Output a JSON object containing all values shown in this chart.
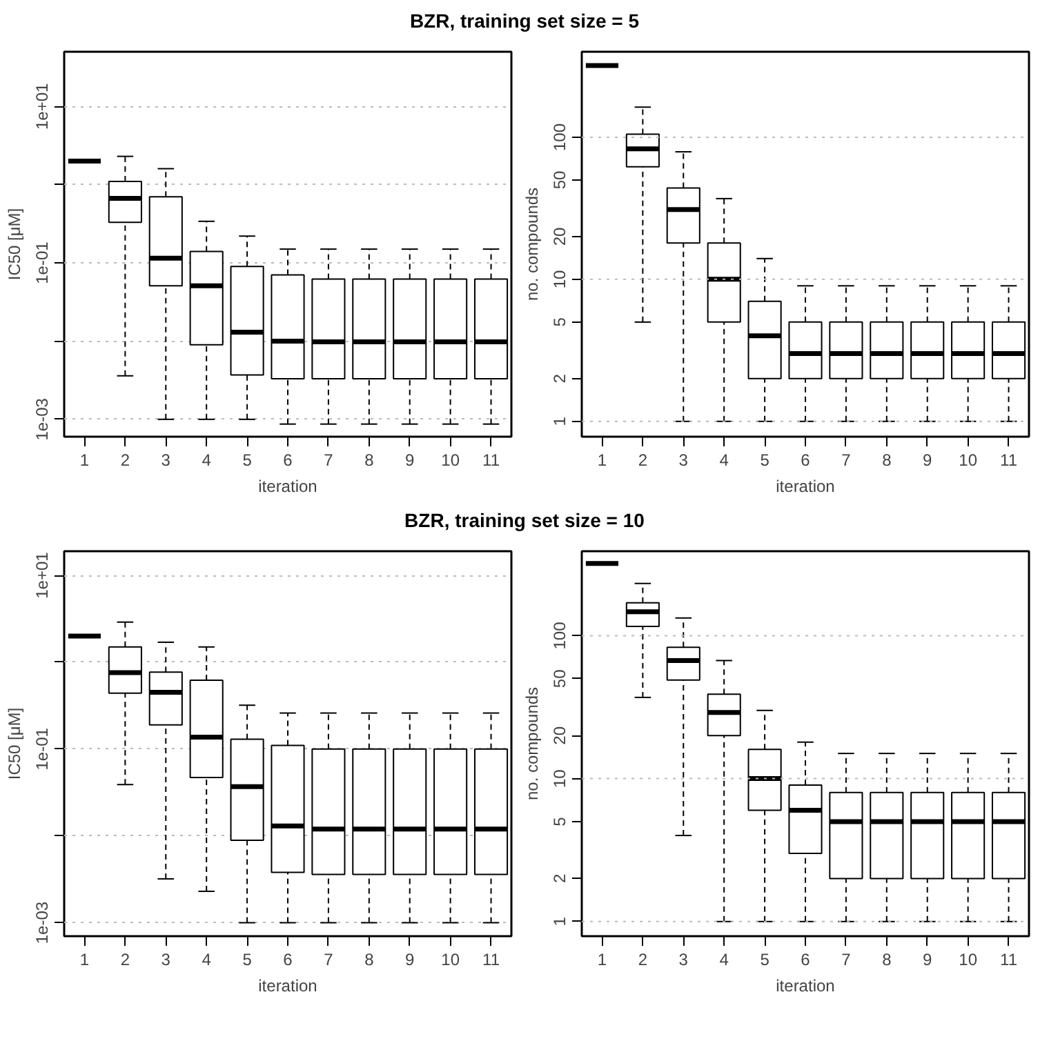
{
  "chart_data": [
    {
      "type": "box",
      "title": "BZR, training set size = 5",
      "xlabel": "iteration",
      "ylabel": "IC50 [μM]",
      "log": true,
      "grid": "y",
      "categories": [
        "1",
        "2",
        "3",
        "4",
        "5",
        "6",
        "7",
        "8",
        "9",
        "10",
        "11"
      ],
      "ylim": [
        0.0006,
        50
      ],
      "yticks": [
        {
          "value": 10,
          "label": "1e+01"
        },
        {
          "value": 1,
          "label": null
        },
        {
          "value": 0.1,
          "label": "1e-01"
        },
        {
          "value": 0.01,
          "label": null
        },
        {
          "value": 0.001,
          "label": "1e-03"
        }
      ],
      "boxes": [
        {
          "low": 2,
          "q1": 2,
          "median": 2,
          "q3": 2,
          "high": 2
        },
        {
          "low": 0.0036,
          "q1": 0.33,
          "median": 0.67,
          "q3": 1.1,
          "high": 2.3
        },
        {
          "low": 0.001,
          "q1": 0.051,
          "median": 0.115,
          "q3": 0.7,
          "high": 1.6
        },
        {
          "low": 0.001,
          "q1": 0.009,
          "median": 0.051,
          "q3": 0.14,
          "high": 0.34
        },
        {
          "low": 0.001,
          "q1": 0.0037,
          "median": 0.013,
          "q3": 0.09,
          "high": 0.22
        },
        {
          "low": 0.00087,
          "q1": 0.0033,
          "median": 0.01,
          "q3": 0.07,
          "high": 0.15
        },
        {
          "low": 0.00087,
          "q1": 0.0033,
          "median": 0.0098,
          "q3": 0.062,
          "high": 0.15
        },
        {
          "low": 0.00087,
          "q1": 0.0033,
          "median": 0.0098,
          "q3": 0.062,
          "high": 0.15
        },
        {
          "low": 0.00087,
          "q1": 0.0033,
          "median": 0.0098,
          "q3": 0.062,
          "high": 0.15
        },
        {
          "low": 0.00087,
          "q1": 0.0033,
          "median": 0.0098,
          "q3": 0.062,
          "high": 0.15
        },
        {
          "low": 0.00087,
          "q1": 0.0033,
          "median": 0.0098,
          "q3": 0.062,
          "high": 0.15
        }
      ]
    },
    {
      "type": "box",
      "xlabel": "iteration",
      "ylabel": "no. compounds",
      "log": true,
      "categories": [
        "1",
        "2",
        "3",
        "4",
        "5",
        "6",
        "7",
        "8",
        "9",
        "10",
        "11"
      ],
      "ylim": [
        0.78,
        400
      ],
      "yticks": [
        1,
        2,
        5,
        10,
        20,
        50,
        100
      ],
      "ref_lines": [
        {
          "axis": "y",
          "value": 1,
          "color": "#bbbbbb",
          "line_style": "dotted"
        },
        {
          "axis": "y",
          "value": 10,
          "color": "#bbbbbb",
          "line_style": "dotted"
        },
        {
          "axis": "y",
          "value": 100,
          "color": "#bbbbbb",
          "line_style": "dotted"
        }
      ],
      "boxes": [
        {
          "low": 320,
          "q1": 320,
          "median": 320,
          "q3": 320,
          "high": 320
        },
        {
          "low": 5,
          "q1": 62,
          "median": 83,
          "q3": 105,
          "high": 163
        },
        {
          "low": 1,
          "q1": 18,
          "median": 31,
          "q3": 44,
          "high": 79
        },
        {
          "low": 1,
          "q1": 5,
          "median": 10,
          "q3": 18,
          "high": 37
        },
        {
          "low": 1,
          "q1": 2,
          "median": 4,
          "q3": 7,
          "high": 14
        },
        {
          "low": 1,
          "q1": 2,
          "median": 3,
          "q3": 5,
          "high": 9
        },
        {
          "low": 1,
          "q1": 2,
          "median": 3,
          "q3": 5,
          "high": 9
        },
        {
          "low": 1,
          "q1": 2,
          "median": 3,
          "q3": 5,
          "high": 9
        },
        {
          "low": 1,
          "q1": 2,
          "median": 3,
          "q3": 5,
          "high": 9
        },
        {
          "low": 1,
          "q1": 2,
          "median": 3,
          "q3": 5,
          "high": 9
        },
        {
          "low": 1,
          "q1": 2,
          "median": 3,
          "q3": 5,
          "high": 9
        }
      ]
    },
    {
      "type": "box",
      "title": "BZR, training set size = 10",
      "xlabel": "iteration",
      "ylabel": "IC50 [μM]",
      "log": true,
      "grid": "y",
      "categories": [
        "1",
        "2",
        "3",
        "4",
        "5",
        "6",
        "7",
        "8",
        "9",
        "10",
        "11"
      ],
      "ylim": [
        0.0007,
        19
      ],
      "yticks": [
        {
          "value": 10,
          "label": "1e+01"
        },
        {
          "value": 1,
          "label": null
        },
        {
          "value": 0.1,
          "label": "1e-01"
        },
        {
          "value": 0.01,
          "label": null
        },
        {
          "value": 0.001,
          "label": "1e-03"
        }
      ],
      "boxes": [
        {
          "low": 2,
          "q1": 2,
          "median": 2,
          "q3": 2,
          "high": 2
        },
        {
          "low": 0.039,
          "q1": 0.44,
          "median": 0.76,
          "q3": 1.5,
          "high": 2.9
        },
        {
          "low": 0.0032,
          "q1": 0.19,
          "median": 0.45,
          "q3": 0.77,
          "high": 1.7
        },
        {
          "low": 0.0023,
          "q1": 0.047,
          "median": 0.137,
          "q3": 0.62,
          "high": 1.5
        },
        {
          "low": 0.001,
          "q1": 0.0089,
          "median": 0.037,
          "q3": 0.13,
          "high": 0.32
        },
        {
          "low": 0.001,
          "q1": 0.0038,
          "median": 0.013,
          "q3": 0.11,
          "high": 0.26
        },
        {
          "low": 0.001,
          "q1": 0.0036,
          "median": 0.012,
          "q3": 0.1,
          "high": 0.26
        },
        {
          "low": 0.001,
          "q1": 0.0036,
          "median": 0.012,
          "q3": 0.1,
          "high": 0.26
        },
        {
          "low": 0.001,
          "q1": 0.0036,
          "median": 0.012,
          "q3": 0.1,
          "high": 0.26
        },
        {
          "low": 0.001,
          "q1": 0.0036,
          "median": 0.012,
          "q3": 0.1,
          "high": 0.26
        },
        {
          "low": 0.001,
          "q1": 0.0036,
          "median": 0.012,
          "q3": 0.1,
          "high": 0.26
        }
      ]
    },
    {
      "type": "box",
      "xlabel": "iteration",
      "ylabel": "no. compounds",
      "log": true,
      "categories": [
        "1",
        "2",
        "3",
        "4",
        "5",
        "6",
        "7",
        "8",
        "9",
        "10",
        "11"
      ],
      "ylim": [
        0.79,
        390
      ],
      "yticks": [
        1,
        2,
        5,
        10,
        20,
        50,
        100
      ],
      "ref_lines": [
        {
          "axis": "y",
          "value": 1,
          "color": "#bbbbbb",
          "line_style": "dotted"
        },
        {
          "axis": "y",
          "value": 10,
          "color": "#bbbbbb",
          "line_style": "dotted"
        },
        {
          "axis": "y",
          "value": 100,
          "color": "#bbbbbb",
          "line_style": "dotted"
        }
      ],
      "boxes": [
        {
          "low": 320,
          "q1": 320,
          "median": 320,
          "q3": 320,
          "high": 320
        },
        {
          "low": 37,
          "q1": 116,
          "median": 147,
          "q3": 170,
          "high": 232
        },
        {
          "low": 4,
          "q1": 49,
          "median": 67,
          "q3": 83,
          "high": 133
        },
        {
          "low": 1,
          "q1": 20,
          "median": 29,
          "q3": 39,
          "high": 67
        },
        {
          "low": 1,
          "q1": 6,
          "median": 10,
          "q3": 16,
          "high": 30
        },
        {
          "low": 1,
          "q1": 3,
          "median": 6,
          "q3": 9,
          "high": 18
        },
        {
          "low": 1,
          "q1": 2,
          "median": 5,
          "q3": 8,
          "high": 15
        },
        {
          "low": 1,
          "q1": 2,
          "median": 5,
          "q3": 8,
          "high": 15
        },
        {
          "low": 1,
          "q1": 2,
          "median": 5,
          "q3": 8,
          "high": 15
        },
        {
          "low": 1,
          "q1": 2,
          "median": 5,
          "q3": 8,
          "high": 15
        },
        {
          "low": 1,
          "q1": 2,
          "median": 5,
          "q3": 8,
          "high": 15
        }
      ]
    }
  ]
}
